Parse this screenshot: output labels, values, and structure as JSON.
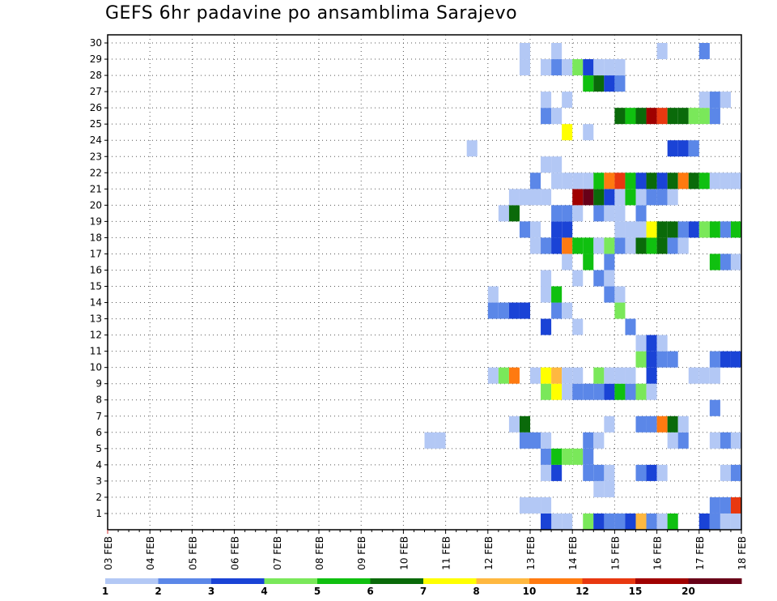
{
  "title": "GEFS 6hr padavine po ansamblima Sarajevo",
  "chart_data": {
    "type": "heatmap",
    "title": "GEFS 6hr padavine po ansamblima Sarajevo",
    "x_tick_labels": [
      "03 FEB",
      "04 FEB",
      "05 FEB",
      "06 FEB",
      "07 FEB",
      "08 FEB",
      "09 FEB",
      "10 FEB",
      "11 FEB",
      "12 FEB",
      "13 FEB",
      "14 FEB",
      "15 FEB",
      "16 FEB",
      "17 FEB",
      "18 FEB"
    ],
    "y_tick_labels": [
      "1",
      "2",
      "3",
      "4",
      "5",
      "6",
      "7",
      "8",
      "9",
      "10",
      "11",
      "12",
      "13",
      "14",
      "15",
      "16",
      "17",
      "18",
      "19",
      "20",
      "21",
      "22",
      "23",
      "24",
      "25",
      "26",
      "27",
      "28",
      "29",
      "30"
    ],
    "x_unit": "6-hour steps after 03 FEB",
    "y_unit": "ensemble member",
    "colorbar": {
      "levels": [
        1,
        2,
        3,
        4,
        5,
        6,
        7,
        8,
        10,
        12,
        15,
        20
      ],
      "labels": [
        "1",
        "2",
        "3",
        "4",
        "5",
        "6",
        "7",
        "8",
        "10",
        "12",
        "15",
        "20"
      ],
      "colors": [
        "#b3c8f5",
        "#5b87e8",
        "#1a43d6",
        "#7ae85a",
        "#10c010",
        "#0a6a0a",
        "#ffff00",
        "#ffb840",
        "#ff7a10",
        "#e83810",
        "#a00000",
        "#680018"
      ]
    },
    "cells": [
      [
        1,
        0,
        42
      ],
      [
        1,
        0,
        43
      ],
      [
        1,
        0,
        48
      ],
      [
        1,
        0,
        49
      ],
      [
        1,
        0,
        51
      ],
      [
        1,
        0,
        53
      ],
      [
        1,
        0,
        59
      ],
      [
        1,
        0,
        60
      ],
      [
        1,
        0,
        61
      ],
      [
        1,
        0,
        62
      ],
      [
        1,
        1,
        41
      ],
      [
        1,
        2,
        41
      ],
      [
        1,
        3,
        45
      ],
      [
        1,
        1,
        46
      ],
      [
        1,
        2,
        46
      ],
      [
        1,
        1,
        47
      ],
      [
        1,
        1,
        48
      ],
      [
        1,
        2,
        49
      ],
      [
        1,
        7,
        50
      ],
      [
        1,
        1,
        51
      ],
      [
        1,
        0,
        52
      ],
      [
        1,
        4,
        53
      ],
      [
        1,
        2,
        56
      ],
      [
        1,
        1,
        57
      ],
      [
        1,
        0,
        58
      ],
      [
        2,
        0,
        39
      ],
      [
        2,
        0,
        40
      ],
      [
        2,
        0,
        41
      ],
      [
        2,
        1,
        57
      ],
      [
        2,
        1,
        58
      ],
      [
        2,
        9,
        59
      ],
      [
        2,
        7,
        60
      ],
      [
        2,
        2,
        61
      ],
      [
        2,
        1,
        62
      ],
      [
        2,
        1,
        63
      ],
      [
        2,
        1,
        64
      ],
      [
        3,
        0,
        46
      ],
      [
        3,
        0,
        47
      ],
      [
        4,
        0,
        41
      ],
      [
        4,
        2,
        42
      ],
      [
        4,
        1,
        45
      ],
      [
        4,
        1,
        46
      ],
      [
        4,
        0,
        47
      ],
      [
        4,
        1,
        50
      ],
      [
        4,
        2,
        51
      ],
      [
        4,
        0,
        52
      ],
      [
        4,
        0,
        58
      ],
      [
        4,
        1,
        59
      ],
      [
        4,
        1,
        60
      ],
      [
        5,
        1,
        41
      ],
      [
        5,
        4,
        42
      ],
      [
        5,
        3,
        43
      ],
      [
        5,
        3,
        44
      ],
      [
        5,
        1,
        45
      ],
      [
        5,
        0,
        60
      ],
      [
        5,
        3,
        61
      ],
      [
        6,
        0,
        30
      ],
      [
        6,
        0,
        31
      ],
      [
        6,
        1,
        39
      ],
      [
        6,
        1,
        40
      ],
      [
        6,
        0,
        41
      ],
      [
        6,
        1,
        45
      ],
      [
        6,
        0,
        46
      ],
      [
        6,
        0,
        53
      ],
      [
        6,
        1,
        54
      ],
      [
        6,
        0,
        57
      ],
      [
        6,
        1,
        58
      ],
      [
        6,
        0,
        59
      ],
      [
        7,
        0,
        38
      ],
      [
        7,
        5,
        39
      ],
      [
        7,
        0,
        47
      ],
      [
        7,
        1,
        50
      ],
      [
        7,
        1,
        51
      ],
      [
        7,
        8,
        52
      ],
      [
        7,
        5,
        53
      ],
      [
        7,
        0,
        54
      ],
      [
        8,
        1,
        57
      ],
      [
        8,
        0,
        62
      ],
      [
        8,
        0,
        63
      ],
      [
        8,
        4,
        65
      ],
      [
        8,
        5,
        66
      ],
      [
        8,
        8,
        67
      ],
      [
        8,
        10,
        68
      ],
      [
        8,
        11,
        69
      ],
      [
        8,
        8,
        70
      ],
      [
        8,
        5,
        71
      ],
      [
        9,
        3,
        41
      ],
      [
        9,
        6,
        42
      ],
      [
        9,
        0,
        43
      ],
      [
        9,
        1,
        44
      ],
      [
        9,
        1,
        45
      ],
      [
        9,
        1,
        46
      ],
      [
        9,
        2,
        47
      ],
      [
        9,
        4,
        48
      ],
      [
        9,
        1,
        49
      ],
      [
        9,
        3,
        50
      ],
      [
        9,
        0,
        51
      ],
      [
        9,
        0,
        60
      ],
      [
        9,
        0,
        61
      ],
      [
        9,
        0,
        62
      ],
      [
        10,
        0,
        36
      ],
      [
        10,
        3,
        37
      ],
      [
        10,
        8,
        38
      ],
      [
        10,
        0,
        40
      ],
      [
        10,
        6,
        41
      ],
      [
        10,
        7,
        42
      ],
      [
        10,
        0,
        43
      ],
      [
        10,
        0,
        44
      ],
      [
        10,
        3,
        46
      ],
      [
        10,
        0,
        47
      ],
      [
        10,
        0,
        48
      ],
      [
        10,
        0,
        49
      ],
      [
        10,
        2,
        51
      ],
      [
        10,
        0,
        55
      ],
      [
        10,
        0,
        56
      ],
      [
        10,
        0,
        57
      ],
      [
        10,
        0,
        66
      ],
      [
        11,
        3,
        50
      ],
      [
        11,
        2,
        51
      ],
      [
        11,
        1,
        52
      ],
      [
        11,
        1,
        53
      ],
      [
        11,
        1,
        57
      ],
      [
        11,
        2,
        58
      ],
      [
        11,
        2,
        59
      ],
      [
        11,
        0,
        60
      ],
      [
        11,
        0,
        61
      ],
      [
        11,
        0,
        62
      ],
      [
        11,
        0,
        66
      ],
      [
        11,
        0,
        68
      ],
      [
        12,
        0,
        50
      ],
      [
        12,
        2,
        51
      ],
      [
        12,
        0,
        52
      ],
      [
        12,
        0,
        60
      ],
      [
        12,
        0,
        61
      ],
      [
        12,
        0,
        62
      ],
      [
        13,
        2,
        41
      ],
      [
        13,
        0,
        44
      ],
      [
        13,
        1,
        49
      ],
      [
        13,
        0,
        62
      ],
      [
        13,
        0,
        63
      ],
      [
        13,
        0,
        66
      ],
      [
        13,
        3,
        67
      ],
      [
        13,
        0,
        68
      ],
      [
        13,
        0,
        69
      ],
      [
        14,
        1,
        36
      ],
      [
        14,
        1,
        37
      ],
      [
        14,
        2,
        38
      ],
      [
        14,
        2,
        39
      ],
      [
        14,
        1,
        42
      ],
      [
        14,
        0,
        43
      ],
      [
        14,
        3,
        48
      ],
      [
        15,
        0,
        36
      ],
      [
        15,
        0,
        41
      ],
      [
        15,
        4,
        42
      ],
      [
        15,
        1,
        47
      ],
      [
        15,
        0,
        48
      ],
      [
        16,
        0,
        41
      ],
      [
        16,
        0,
        44
      ],
      [
        16,
        1,
        46
      ],
      [
        16,
        0,
        47
      ],
      [
        16,
        1,
        61
      ],
      [
        16,
        3,
        62
      ],
      [
        16,
        1,
        63
      ],
      [
        16,
        0,
        70
      ],
      [
        17,
        0,
        43
      ],
      [
        17,
        4,
        45
      ],
      [
        17,
        1,
        47
      ],
      [
        17,
        1,
        58
      ],
      [
        17,
        4,
        57
      ],
      [
        17,
        0,
        59
      ],
      [
        17,
        2,
        60
      ],
      [
        17,
        0,
        61
      ],
      [
        17,
        0,
        62
      ],
      [
        17,
        0,
        63
      ],
      [
        17,
        0,
        64
      ],
      [
        18,
        0,
        40
      ],
      [
        18,
        1,
        41
      ],
      [
        18,
        2,
        42
      ],
      [
        18,
        8,
        43
      ],
      [
        18,
        4,
        44
      ],
      [
        18,
        4,
        45
      ],
      [
        18,
        0,
        46
      ],
      [
        18,
        3,
        47
      ],
      [
        18,
        1,
        48
      ],
      [
        18,
        0,
        49
      ],
      [
        18,
        5,
        50
      ],
      [
        18,
        4,
        51
      ],
      [
        18,
        5,
        52
      ],
      [
        18,
        1,
        53
      ],
      [
        18,
        0,
        54
      ],
      [
        18,
        0,
        63
      ],
      [
        19,
        1,
        39
      ],
      [
        19,
        0,
        40
      ],
      [
        19,
        2,
        42
      ],
      [
        19,
        2,
        43
      ],
      [
        19,
        0,
        48
      ],
      [
        19,
        0,
        49
      ],
      [
        19,
        0,
        50
      ],
      [
        19,
        6,
        51
      ],
      [
        19,
        5,
        52
      ],
      [
        19,
        5,
        53
      ],
      [
        19,
        1,
        54
      ],
      [
        19,
        2,
        55
      ],
      [
        19,
        3,
        56
      ],
      [
        19,
        4,
        57
      ],
      [
        19,
        1,
        58
      ],
      [
        19,
        4,
        59
      ],
      [
        19,
        5,
        60
      ],
      [
        19,
        3,
        61
      ],
      [
        19,
        3,
        62
      ],
      [
        19,
        4,
        63
      ],
      [
        19,
        3,
        64
      ],
      [
        19,
        2,
        65
      ],
      [
        19,
        0,
        66
      ],
      [
        20,
        0,
        37
      ],
      [
        20,
        5,
        38
      ],
      [
        20,
        1,
        42
      ],
      [
        20,
        1,
        43
      ],
      [
        20,
        0,
        44
      ],
      [
        20,
        1,
        46
      ],
      [
        20,
        0,
        47
      ],
      [
        20,
        0,
        48
      ],
      [
        20,
        1,
        50
      ],
      [
        20,
        0,
        65
      ],
      [
        20,
        0,
        66
      ],
      [
        21,
        0,
        38
      ],
      [
        21,
        0,
        39
      ],
      [
        21,
        0,
        40
      ],
      [
        21,
        0,
        41
      ],
      [
        21,
        10,
        44
      ],
      [
        21,
        11,
        45
      ],
      [
        21,
        5,
        46
      ],
      [
        21,
        2,
        47
      ],
      [
        21,
        0,
        48
      ],
      [
        21,
        4,
        49
      ],
      [
        21,
        0,
        50
      ],
      [
        21,
        1,
        51
      ],
      [
        21,
        1,
        52
      ],
      [
        21,
        0,
        53
      ],
      [
        22,
        1,
        40
      ],
      [
        22,
        0,
        42
      ],
      [
        22,
        0,
        43
      ],
      [
        22,
        0,
        44
      ],
      [
        22,
        0,
        45
      ],
      [
        22,
        4,
        46
      ],
      [
        22,
        8,
        47
      ],
      [
        22,
        9,
        48
      ],
      [
        22,
        4,
        49
      ],
      [
        22,
        2,
        50
      ],
      [
        22,
        5,
        51
      ],
      [
        22,
        2,
        52
      ],
      [
        22,
        5,
        53
      ],
      [
        22,
        8,
        54
      ],
      [
        22,
        5,
        55
      ],
      [
        22,
        4,
        56
      ],
      [
        22,
        0,
        57
      ],
      [
        22,
        0,
        58
      ],
      [
        22,
        0,
        59
      ],
      [
        22,
        0,
        60
      ],
      [
        22,
        0,
        61
      ],
      [
        23,
        0,
        41
      ],
      [
        23,
        0,
        42
      ],
      [
        23,
        0,
        66
      ],
      [
        24,
        0,
        34
      ],
      [
        24,
        2,
        53
      ],
      [
        24,
        2,
        54
      ],
      [
        24,
        1,
        55
      ],
      [
        25,
        6,
        43
      ],
      [
        25,
        0,
        45
      ],
      [
        25,
        1,
        71
      ],
      [
        26,
        1,
        41
      ],
      [
        26,
        0,
        42
      ],
      [
        26,
        5,
        48
      ],
      [
        26,
        4,
        49
      ],
      [
        26,
        5,
        50
      ],
      [
        26,
        10,
        51
      ],
      [
        26,
        9,
        52
      ],
      [
        26,
        5,
        53
      ],
      [
        26,
        5,
        54
      ],
      [
        26,
        3,
        55
      ],
      [
        26,
        3,
        56
      ],
      [
        26,
        1,
        57
      ],
      [
        26,
        0,
        61
      ],
      [
        26,
        0,
        62
      ],
      [
        26,
        0,
        63
      ],
      [
        26,
        0,
        64
      ],
      [
        26,
        0,
        68
      ],
      [
        27,
        0,
        41
      ],
      [
        27,
        0,
        43
      ],
      [
        27,
        0,
        56
      ],
      [
        27,
        1,
        57
      ],
      [
        27,
        0,
        58
      ],
      [
        28,
        4,
        45
      ],
      [
        28,
        5,
        46
      ],
      [
        28,
        2,
        47
      ],
      [
        28,
        1,
        48
      ],
      [
        28,
        1,
        66
      ],
      [
        28,
        2,
        67
      ],
      [
        28,
        6,
        68
      ],
      [
        29,
        0,
        39
      ],
      [
        29,
        0,
        41
      ],
      [
        29,
        1,
        42
      ],
      [
        29,
        0,
        43
      ],
      [
        29,
        3,
        44
      ],
      [
        29,
        2,
        45
      ],
      [
        29,
        0,
        46
      ],
      [
        29,
        0,
        47
      ],
      [
        29,
        0,
        48
      ],
      [
        30,
        0,
        39
      ],
      [
        30,
        0,
        42
      ],
      [
        30,
        0,
        52
      ],
      [
        30,
        1,
        56
      ],
      [
        30,
        0,
        61
      ],
      [
        30,
        0,
        63
      ],
      [
        30,
        0,
        65
      ]
    ]
  }
}
